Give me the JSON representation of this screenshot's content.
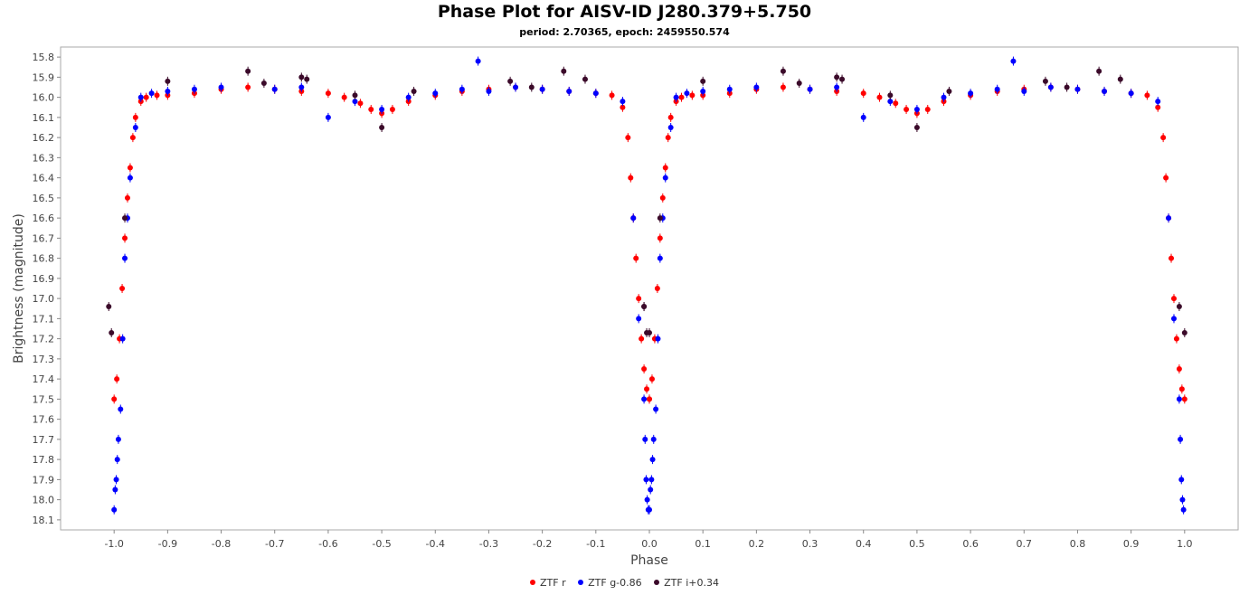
{
  "chart_data": {
    "type": "scatter",
    "title": "Phase Plot for AISV-ID J280.379+5.750",
    "subtitle": "period: 2.70365, epoch: 2459550.574",
    "xlabel": "Phase",
    "ylabel": "Brightness (magnitude)",
    "xlim": [
      -1.1,
      1.1
    ],
    "ylim": [
      15.75,
      18.15
    ],
    "y_inverted": true,
    "x_ticks": [
      "-1.0",
      "-0.9",
      "-0.8",
      "-0.7",
      "-0.6",
      "-0.5",
      "-0.4",
      "-0.3",
      "-0.2",
      "-0.1",
      "0.0",
      "0.1",
      "0.2",
      "0.3",
      "0.4",
      "0.5",
      "0.6",
      "0.7",
      "0.8",
      "0.9",
      "1.0"
    ],
    "y_ticks": [
      "15.8",
      "15.9",
      "16.0",
      "16.1",
      "16.2",
      "16.3",
      "16.4",
      "16.5",
      "16.6",
      "16.7",
      "16.8",
      "16.9",
      "17.0",
      "17.1",
      "17.2",
      "17.3",
      "17.4",
      "17.5",
      "17.6",
      "17.7",
      "17.8",
      "17.9",
      "18.0",
      "18.1"
    ],
    "grid": false,
    "legend_position": "bottom",
    "series": [
      {
        "name": "ZTF r",
        "color": "#ff0000",
        "x": [
          0.0,
          0.005,
          0.01,
          0.015,
          0.02,
          0.025,
          0.03,
          0.035,
          0.04,
          0.05,
          0.06,
          0.08,
          0.1,
          0.15,
          0.2,
          0.25,
          0.3,
          0.35,
          0.4,
          0.43,
          0.46,
          0.48,
          0.5,
          0.52,
          0.55,
          0.6,
          0.65,
          0.7,
          0.75,
          0.8,
          0.85,
          0.9,
          0.93,
          0.95,
          0.96,
          0.965,
          0.97,
          0.975,
          0.98,
          0.985,
          0.99,
          0.995,
          1.0
        ],
        "y": [
          17.5,
          17.4,
          17.2,
          16.95,
          16.7,
          16.5,
          16.35,
          16.2,
          16.1,
          16.02,
          16.0,
          15.99,
          15.99,
          15.98,
          15.96,
          15.95,
          15.96,
          15.97,
          15.98,
          16.0,
          16.03,
          16.06,
          16.08,
          16.06,
          16.02,
          15.99,
          15.97,
          15.96,
          15.95,
          15.96,
          15.97,
          15.98,
          15.99,
          16.05,
          16.2,
          16.4,
          16.6,
          16.8,
          17.0,
          17.2,
          17.35,
          17.45,
          17.5
        ]
      },
      {
        "name": "ZTF g-0.86",
        "color": "#0000ff",
        "x": [
          0.0,
          0.002,
          0.004,
          0.006,
          0.008,
          0.012,
          0.016,
          0.02,
          0.025,
          0.03,
          0.04,
          0.05,
          0.07,
          0.1,
          0.15,
          0.2,
          0.3,
          0.35,
          0.4,
          0.45,
          0.5,
          0.55,
          0.6,
          0.65,
          0.68,
          0.7,
          0.75,
          0.8,
          0.85,
          0.9,
          0.95,
          0.97,
          0.98,
          0.99,
          0.992,
          0.994,
          0.996,
          0.998
        ],
        "y": [
          18.05,
          17.95,
          17.9,
          17.8,
          17.7,
          17.55,
          17.2,
          16.8,
          16.6,
          16.4,
          16.15,
          16.0,
          15.98,
          15.97,
          15.96,
          15.95,
          15.96,
          15.95,
          16.1,
          16.02,
          16.06,
          16.0,
          15.98,
          15.96,
          15.82,
          15.97,
          15.95,
          15.96,
          15.97,
          15.98,
          16.02,
          16.6,
          17.1,
          17.5,
          17.7,
          17.9,
          18.0,
          18.05
        ]
      },
      {
        "name": "ZTF i+0.34",
        "color": "#3b0a2a",
        "x": [
          -0.01,
          -0.005,
          0.02,
          0.1,
          0.25,
          0.28,
          0.35,
          0.36,
          0.45,
          0.5,
          0.56,
          0.74,
          0.78,
          0.84,
          0.88,
          0.99,
          1.0
        ],
        "y": [
          17.04,
          17.17,
          16.6,
          15.92,
          15.87,
          15.93,
          15.9,
          15.91,
          15.99,
          16.15,
          15.97,
          15.92,
          15.95,
          15.87,
          15.91,
          17.04,
          17.17
        ]
      }
    ]
  }
}
